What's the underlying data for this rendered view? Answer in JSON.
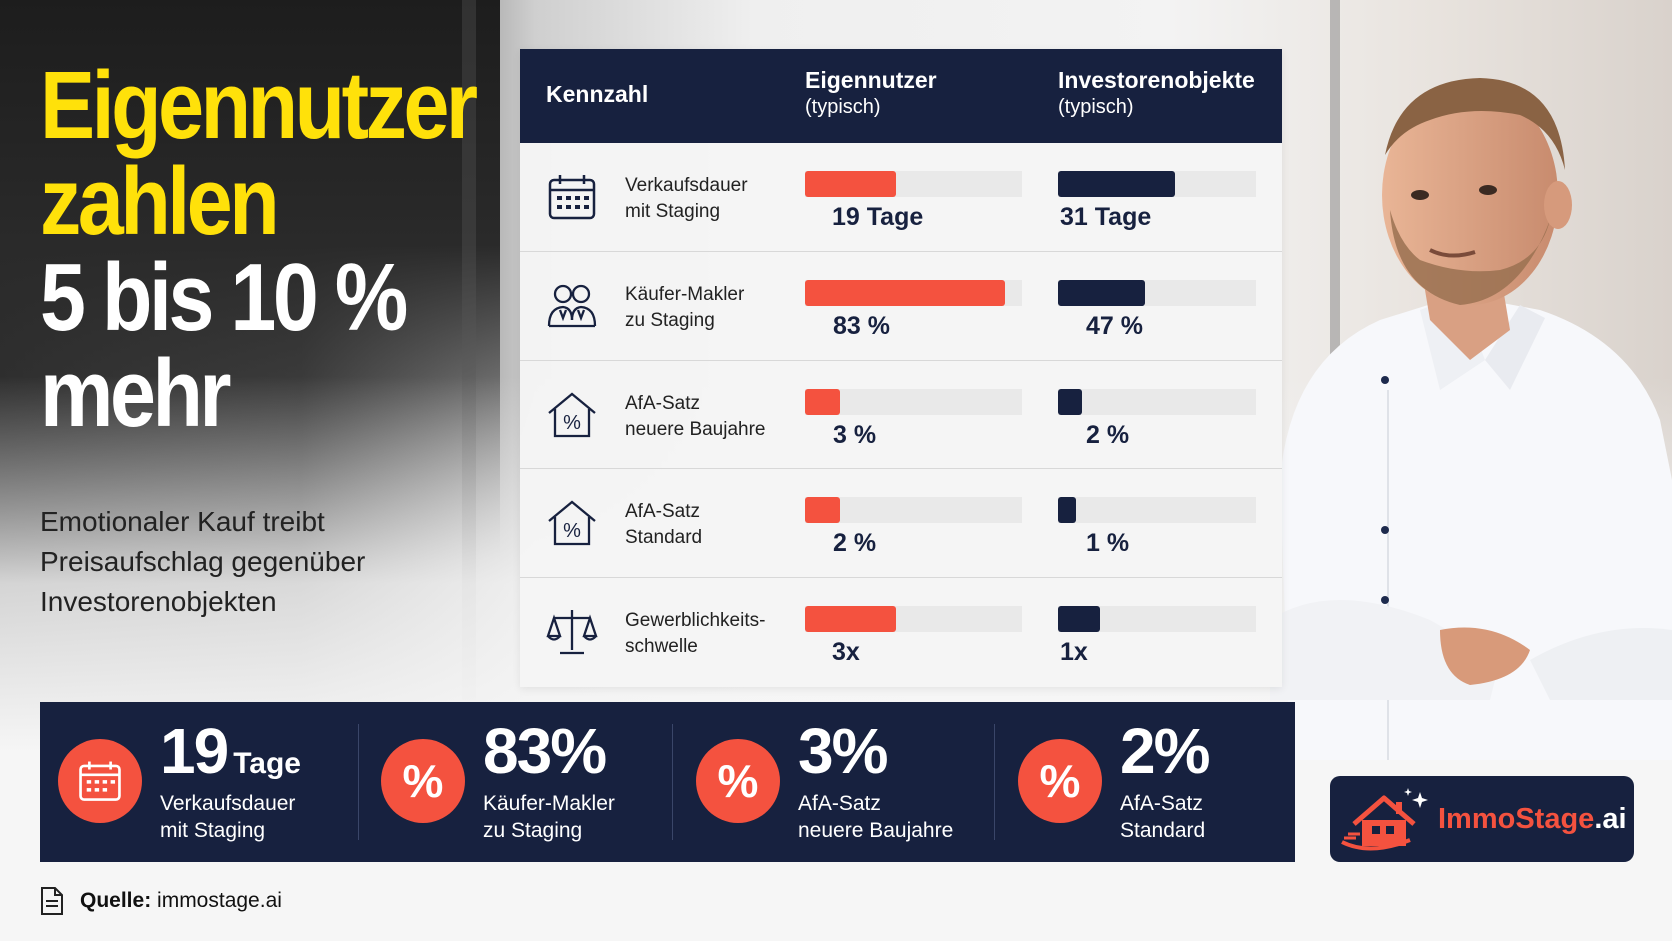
{
  "headline": {
    "line1": "Eigennutzer",
    "line2": "zahlen",
    "line3": "5 bis 10 %",
    "line4": "mehr"
  },
  "subtext": "Emotionaler Kauf treibt Preisaufschlag gegenüber Investorenobjekten",
  "table": {
    "headers": {
      "col1": "Kennzahl",
      "col2": "Eigennutzer",
      "col2_sub": "(typisch)",
      "col3": "Investorenobjekte",
      "col3_sub": "(typisch)"
    },
    "rows": [
      {
        "icon": "calendar-icon",
        "label_line1": "Verkaufsdauer",
        "label_line2": "mit Staging",
        "own_value": "19 Tage",
        "inv_value": "31 Tage",
        "own_level": 0.42,
        "inv_level": 0.59
      },
      {
        "icon": "people-icon",
        "label_line1": "Käufer-Makler",
        "label_line2": "zu Staging",
        "own_value": "83 %",
        "inv_value": "47 %",
        "own_level": 0.92,
        "inv_level": 0.44
      },
      {
        "icon": "house-percent-icon",
        "label_line1": "AfA-Satz",
        "label_line2": "neuere Baujahre",
        "own_value": "3 %",
        "inv_value": "2 %",
        "own_level": 0.16,
        "inv_level": 0.12
      },
      {
        "icon": "house-percent-icon",
        "label_line1": "AfA-Satz",
        "label_line2": "Standard",
        "own_value": "2 %",
        "inv_value": "1 %",
        "own_level": 0.16,
        "inv_level": 0.09
      },
      {
        "icon": "scales-icon",
        "label_line1": "Gewerblichkeits-",
        "label_line2": "schwelle",
        "own_value": "3x",
        "inv_value": "1x",
        "own_level": 0.42,
        "inv_level": 0.21
      }
    ]
  },
  "stats": [
    {
      "icon": "calendar-icon",
      "big": "19",
      "unit": "Tage",
      "line1": "Verkaufsdauer",
      "line2": "mit Staging"
    },
    {
      "icon": "percent-icon",
      "symbol": "%",
      "big": "83%",
      "unit": "",
      "line1": "Käufer-Makler",
      "line2": "zu Staging"
    },
    {
      "icon": "percent-icon",
      "symbol": "%",
      "big": "3%",
      "unit": "",
      "line1": "AfA-Satz",
      "line2": "neuere Baujahre"
    },
    {
      "icon": "percent-icon",
      "symbol": "%",
      "big": "2%",
      "unit": "",
      "line1": "AfA-Satz",
      "line2": "Standard"
    }
  ],
  "logo": {
    "name_main": "ImmoStage",
    "name_suffix": ".ai"
  },
  "source": {
    "label": "Quelle:",
    "value": "immostage.ai"
  },
  "colors": {
    "navy": "#17213f",
    "coral": "#f4523f",
    "yellow": "#ffe10a"
  }
}
